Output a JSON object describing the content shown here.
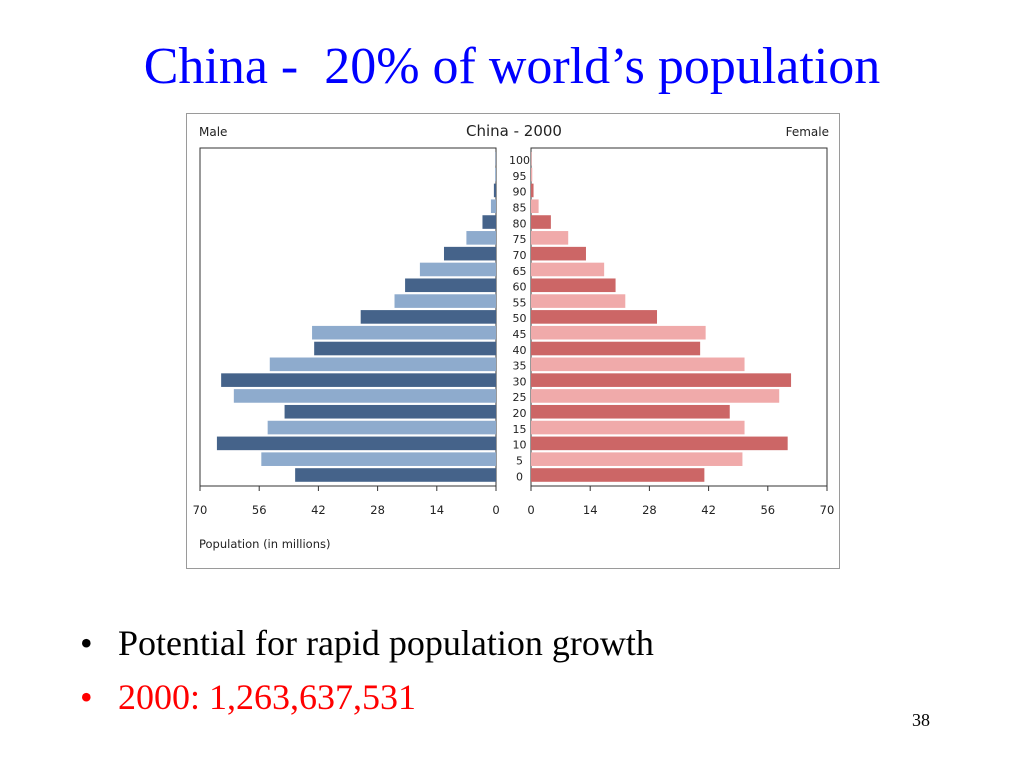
{
  "slide": {
    "title": "China -  20% of world’s population",
    "bullets": [
      {
        "marker": "•",
        "text": "Potential for rapid population growth",
        "color": "#000000"
      },
      {
        "marker": "•",
        "text": "2000: 1,263,637,531",
        "color": "#ff0000"
      }
    ],
    "page_number": "38"
  },
  "chart_data": {
    "type": "bar",
    "subtype": "population-pyramid",
    "title": "China - 2000",
    "left_label": "Male",
    "right_label": "Female",
    "xlabel": "Population (in millions)",
    "xlim": [
      0,
      70
    ],
    "x_ticks": [
      70,
      56,
      42,
      28,
      14,
      0
    ],
    "x_ticks_right": [
      0,
      14,
      28,
      42,
      56,
      70
    ],
    "age_groups": [
      "100",
      "95",
      "90",
      "85",
      "80",
      "75",
      "70",
      "65",
      "60",
      "55",
      "50",
      "45",
      "40",
      "35",
      "30",
      "25",
      "20",
      "15",
      "10",
      "5",
      "0"
    ],
    "series": [
      {
        "name": "Male",
        "values": [
          0.1,
          0.2,
          0.5,
          1.2,
          3.2,
          7.0,
          12.3,
          18.0,
          21.5,
          24.0,
          32.0,
          43.5,
          43.0,
          53.5,
          65.0,
          62.0,
          50.0,
          54.0,
          66.0,
          55.5,
          47.5
        ]
      },
      {
        "name": "Female",
        "values": [
          0.1,
          0.3,
          0.6,
          1.8,
          4.7,
          8.8,
          13.0,
          17.3,
          20.0,
          22.3,
          29.8,
          41.3,
          40.0,
          50.5,
          61.5,
          58.7,
          47.0,
          50.5,
          60.7,
          50.0,
          41.0
        ]
      }
    ],
    "colors": {
      "male_dark": "#45638a",
      "male_light": "#8eabcd",
      "female_dark": "#cc6666",
      "female_light": "#f0aaaa"
    },
    "grid": false
  }
}
